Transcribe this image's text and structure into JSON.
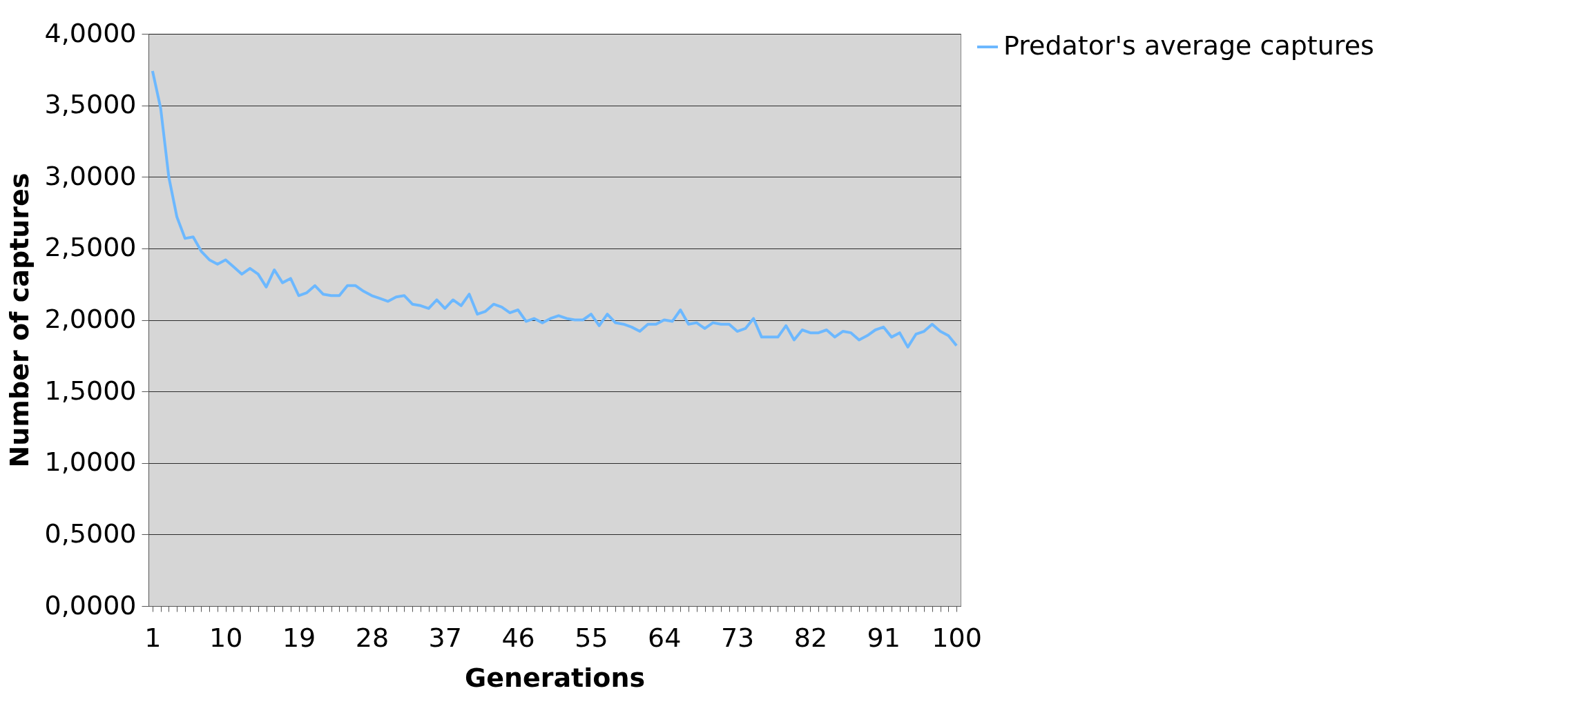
{
  "chart_data": {
    "type": "line",
    "xlabel": "Generations",
    "ylabel": "Number of captures",
    "categories": [
      "1",
      null,
      null,
      null,
      null,
      null,
      null,
      null,
      null,
      "10",
      null,
      null,
      null,
      null,
      null,
      null,
      null,
      null,
      "19",
      null,
      null,
      null,
      null,
      null,
      null,
      null,
      null,
      "28",
      null,
      null,
      null,
      null,
      null,
      null,
      null,
      null,
      "37",
      null,
      null,
      null,
      null,
      null,
      null,
      null,
      null,
      "46",
      null,
      null,
      null,
      null,
      null,
      null,
      null,
      null,
      "55",
      null,
      null,
      null,
      null,
      null,
      null,
      null,
      null,
      "64",
      null,
      null,
      null,
      null,
      null,
      null,
      null,
      null,
      "73",
      null,
      null,
      null,
      null,
      null,
      null,
      null,
      null,
      "82",
      null,
      null,
      null,
      null,
      null,
      null,
      null,
      null,
      "91",
      null,
      null,
      null,
      null,
      null,
      null,
      null,
      null,
      "100"
    ],
    "series": [
      {
        "name": "Predator's average captures",
        "color": "#6cb8ff",
        "values": [
          3.74,
          3.48,
          3.0,
          2.72,
          2.57,
          2.58,
          2.48,
          2.42,
          2.39,
          2.42,
          2.37,
          2.32,
          2.36,
          2.32,
          2.23,
          2.35,
          2.26,
          2.29,
          2.17,
          2.19,
          2.24,
          2.18,
          2.17,
          2.17,
          2.24,
          2.24,
          2.2,
          2.17,
          2.15,
          2.13,
          2.16,
          2.17,
          2.11,
          2.1,
          2.08,
          2.14,
          2.08,
          2.14,
          2.1,
          2.18,
          2.04,
          2.06,
          2.11,
          2.09,
          2.05,
          2.07,
          1.99,
          2.01,
          1.98,
          2.01,
          2.03,
          2.01,
          2.0,
          2.0,
          2.04,
          1.96,
          2.04,
          1.98,
          1.97,
          1.95,
          1.92,
          1.97,
          1.97,
          2.0,
          1.99,
          2.07,
          1.97,
          1.98,
          1.94,
          1.98,
          1.97,
          1.97,
          1.92,
          1.94,
          2.01,
          1.88,
          1.88,
          1.88,
          1.96,
          1.86,
          1.93,
          1.91,
          1.91,
          1.93,
          1.88,
          1.92,
          1.91,
          1.86,
          1.89,
          1.93,
          1.95,
          1.88,
          1.91,
          1.81,
          1.9,
          1.92,
          1.97,
          1.92,
          1.89,
          1.82
        ]
      }
    ],
    "ylim": [
      0,
      4
    ],
    "yticks": [
      {
        "value": 0,
        "label": "0,0000"
      },
      {
        "value": 0.5,
        "label": "0,5000"
      },
      {
        "value": 1,
        "label": "1,0000"
      },
      {
        "value": 1.5,
        "label": "1,5000"
      },
      {
        "value": 2,
        "label": "2,0000"
      },
      {
        "value": 2.5,
        "label": "2,5000"
      },
      {
        "value": 3,
        "label": "3,0000"
      },
      {
        "value": 3.5,
        "label": "3,5000"
      },
      {
        "value": 4,
        "label": "4,0000"
      }
    ],
    "grid": "y",
    "legend": "right",
    "marker": "none"
  }
}
